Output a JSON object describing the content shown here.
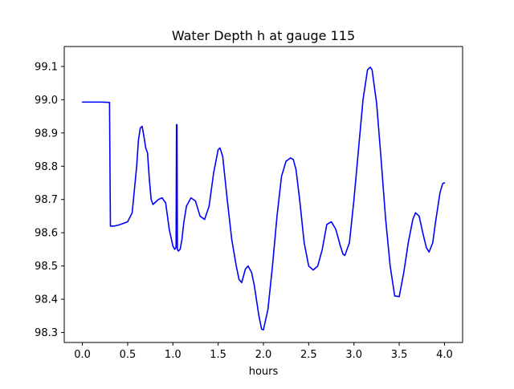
{
  "chart_data": {
    "type": "line",
    "title": "Water Depth h at gauge 115",
    "xlabel": "hours",
    "ylabel": "",
    "xlim": [
      -0.2,
      4.2
    ],
    "ylim": [
      98.27,
      99.16
    ],
    "xticks": [
      0.0,
      0.5,
      1.0,
      1.5,
      2.0,
      2.5,
      3.0,
      3.5,
      4.0
    ],
    "xtick_labels": [
      "0.0",
      "0.5",
      "1.0",
      "1.5",
      "2.0",
      "2.5",
      "3.0",
      "3.5",
      "4.0"
    ],
    "yticks": [
      98.3,
      98.4,
      98.5,
      98.6,
      98.7,
      98.8,
      98.9,
      99.0,
      99.1
    ],
    "ytick_labels": [
      "98.3",
      "98.4",
      "98.5",
      "98.6",
      "98.7",
      "98.8",
      "98.9",
      "99.0",
      "99.1"
    ],
    "grid": false,
    "series": [
      {
        "color": "#0000ff",
        "x": [
          0.0,
          0.1,
          0.2,
          0.3,
          0.305,
          0.31,
          0.35,
          0.4,
          0.45,
          0.5,
          0.55,
          0.6,
          0.62,
          0.64,
          0.66,
          0.68,
          0.7,
          0.72,
          0.74,
          0.76,
          0.78,
          0.8,
          0.84,
          0.88,
          0.92,
          0.96,
          1.0,
          1.02,
          1.035,
          1.04,
          1.045,
          1.05,
          1.06,
          1.08,
          1.1,
          1.12,
          1.15,
          1.2,
          1.25,
          1.3,
          1.35,
          1.4,
          1.45,
          1.5,
          1.52,
          1.55,
          1.6,
          1.65,
          1.7,
          1.73,
          1.76,
          1.8,
          1.83,
          1.87,
          1.9,
          1.95,
          1.98,
          2.0,
          2.05,
          2.1,
          2.15,
          2.2,
          2.25,
          2.3,
          2.33,
          2.36,
          2.4,
          2.45,
          2.5,
          2.55,
          2.6,
          2.65,
          2.7,
          2.75,
          2.8,
          2.85,
          2.88,
          2.9,
          2.95,
          3.0,
          3.05,
          3.1,
          3.15,
          3.18,
          3.2,
          3.25,
          3.3,
          3.35,
          3.4,
          3.45,
          3.5,
          3.55,
          3.6,
          3.65,
          3.68,
          3.72,
          3.76,
          3.8,
          3.83,
          3.87,
          3.9,
          3.95,
          3.98,
          4.0
        ],
        "y": [
          98.993,
          98.993,
          98.993,
          98.992,
          98.8,
          98.62,
          98.62,
          98.623,
          98.628,
          98.633,
          98.66,
          98.8,
          98.88,
          98.915,
          98.92,
          98.89,
          98.855,
          98.84,
          98.76,
          98.7,
          98.685,
          98.69,
          98.7,
          98.705,
          98.69,
          98.61,
          98.56,
          98.55,
          98.555,
          98.925,
          98.925,
          98.55,
          98.545,
          98.55,
          98.58,
          98.63,
          98.68,
          98.705,
          98.695,
          98.65,
          98.64,
          98.68,
          98.78,
          98.85,
          98.855,
          98.83,
          98.7,
          98.58,
          98.5,
          98.46,
          98.45,
          98.49,
          98.5,
          98.48,
          98.44,
          98.35,
          98.31,
          98.308,
          98.37,
          98.5,
          98.65,
          98.77,
          98.815,
          98.825,
          98.82,
          98.79,
          98.7,
          98.57,
          98.5,
          98.488,
          98.5,
          98.55,
          98.625,
          98.633,
          98.61,
          98.56,
          98.535,
          98.532,
          98.57,
          98.7,
          98.85,
          99.0,
          99.09,
          99.098,
          99.09,
          98.99,
          98.82,
          98.64,
          98.5,
          98.41,
          98.408,
          98.48,
          98.57,
          98.64,
          98.66,
          98.65,
          98.6,
          98.555,
          98.542,
          98.57,
          98.63,
          98.72,
          98.748,
          98.75
        ]
      }
    ]
  }
}
